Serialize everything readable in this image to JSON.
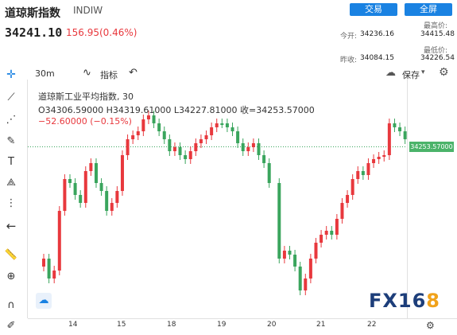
{
  "header": {
    "title": "道琼斯指数",
    "code": "INDIW",
    "trade_button": "交易",
    "all_button": "全屏",
    "price": "34241.10",
    "change": "156.95(0.46%)"
  },
  "stats": {
    "open_label": "今开:",
    "open_value": "34236.16",
    "high_label": "最高价:",
    "high_value": "34415.48",
    "prev_label": "昨收:",
    "prev_value": "34084.15",
    "low_label": "最低价:",
    "low_value": "34226.54"
  },
  "toolbar": {
    "interval": "30m",
    "indicator_label": "指标",
    "save_label": "保存"
  },
  "legend": {
    "name": "道琼斯工业平均指数, 30",
    "ohlc": "O34306.59000  H34319.61000  L34227.81000  收=34253.57000",
    "delta": "−52.60000 (−0.15%)"
  },
  "price_tag": "34253.57000",
  "x_labels": [
    "14",
    "15",
    "18",
    "19",
    "20",
    "21",
    "22"
  ],
  "colors": {
    "up": "#e8383d",
    "down": "#3aa55d",
    "accent": "#1a82e2"
  },
  "watermark": {
    "main": "FX16",
    "accent": "8"
  },
  "chart_data": {
    "type": "candlestick",
    "x_ticks": [
      "14",
      "15",
      "18",
      "19",
      "20",
      "21",
      "22"
    ],
    "last_price": 34253.57,
    "last_ohlc": {
      "open": 34306.59,
      "high": 34319.61,
      "low": 34227.81,
      "close": 34253.57
    }
  }
}
